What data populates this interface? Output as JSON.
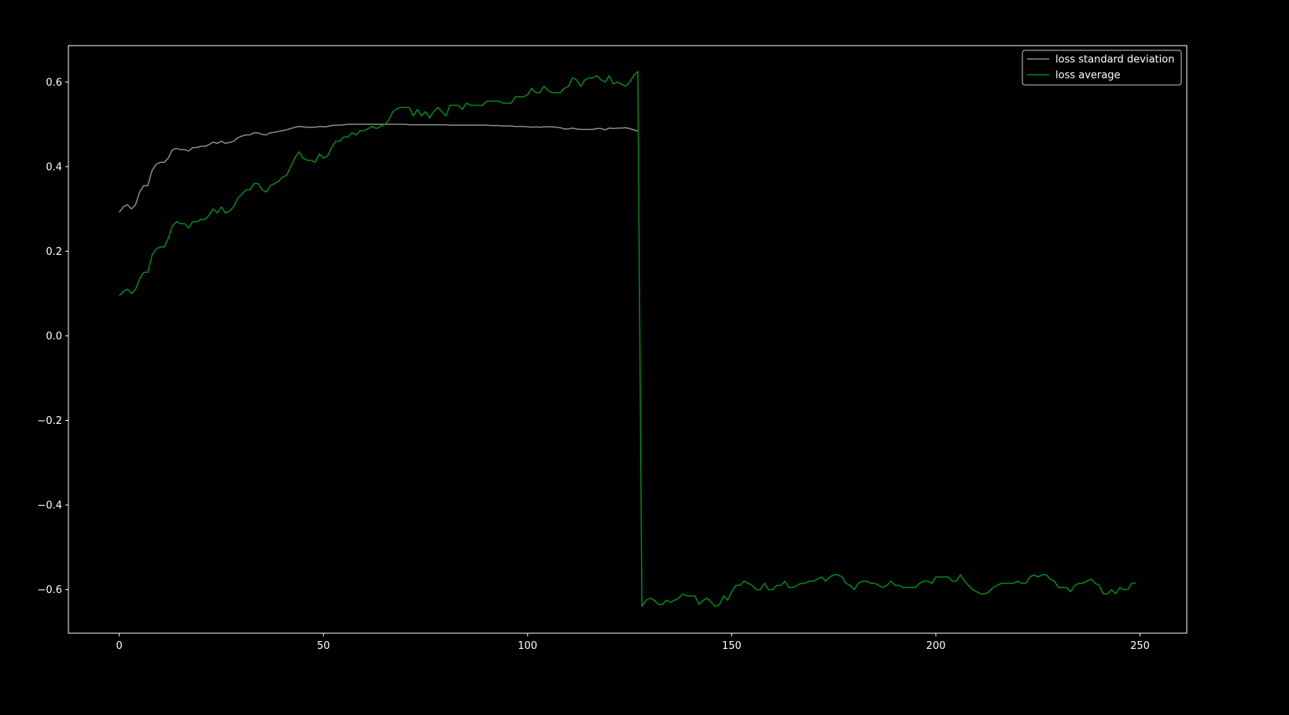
{
  "chart_data": {
    "type": "line",
    "title": "",
    "xlabel": "",
    "ylabel": "",
    "xlim": [
      -12.45,
      261.45
    ],
    "ylim": [
      -0.703,
      0.686
    ],
    "grid": false,
    "legend_position": "top-right",
    "background": "#000000",
    "x_ticks": [
      0,
      50,
      100,
      150,
      200,
      250
    ],
    "x_tick_labels": [
      "0",
      "50",
      "100",
      "150",
      "200",
      "250"
    ],
    "y_ticks": [
      -0.6,
      -0.4,
      -0.2,
      0.0,
      0.2,
      0.4,
      0.6
    ],
    "y_tick_labels": [
      "−0.6",
      "−0.4",
      "−0.2",
      "0.0",
      "0.2",
      "0.4",
      "0.6"
    ],
    "series": [
      {
        "name": "loss standard deviation",
        "color": "#8c8c8c",
        "x_start": 0,
        "values": [
          0.292,
          0.305,
          0.31,
          0.3,
          0.31,
          0.34,
          0.355,
          0.355,
          0.39,
          0.405,
          0.41,
          0.41,
          0.42,
          0.44,
          0.443,
          0.44,
          0.44,
          0.437,
          0.445,
          0.445,
          0.448,
          0.448,
          0.452,
          0.458,
          0.455,
          0.46,
          0.455,
          0.457,
          0.46,
          0.468,
          0.472,
          0.475,
          0.475,
          0.48,
          0.48,
          0.476,
          0.475,
          0.48,
          0.481,
          0.483,
          0.485,
          0.487,
          0.49,
          0.493,
          0.495,
          0.494,
          0.493,
          0.493,
          0.493,
          0.495,
          0.494,
          0.495,
          0.497,
          0.498,
          0.498,
          0.499,
          0.5,
          0.5,
          0.5,
          0.5,
          0.5,
          0.5,
          0.5,
          0.5,
          0.5,
          0.5,
          0.5,
          0.5,
          0.5,
          0.5,
          0.5,
          0.499,
          0.499,
          0.499,
          0.499,
          0.499,
          0.499,
          0.499,
          0.499,
          0.499,
          0.499,
          0.498,
          0.498,
          0.498,
          0.498,
          0.498,
          0.498,
          0.498,
          0.498,
          0.498,
          0.498,
          0.497,
          0.497,
          0.497,
          0.496,
          0.496,
          0.496,
          0.495,
          0.495,
          0.495,
          0.494,
          0.493,
          0.494,
          0.493,
          0.494,
          0.494,
          0.494,
          0.493,
          0.492,
          0.489,
          0.489,
          0.491,
          0.489,
          0.488,
          0.488,
          0.488,
          0.488,
          0.49,
          0.49,
          0.487,
          0.491,
          0.49,
          0.491,
          0.491,
          0.492,
          0.49,
          0.487,
          0.484
        ]
      },
      {
        "name": "loss average",
        "color": "#008a1e",
        "x_start": 0,
        "values": [
          0.095,
          0.105,
          0.11,
          0.1,
          0.11,
          0.135,
          0.15,
          0.15,
          0.19,
          0.205,
          0.21,
          0.21,
          0.23,
          0.26,
          0.27,
          0.265,
          0.265,
          0.255,
          0.27,
          0.27,
          0.275,
          0.275,
          0.285,
          0.3,
          0.29,
          0.305,
          0.29,
          0.295,
          0.305,
          0.325,
          0.335,
          0.345,
          0.345,
          0.36,
          0.36,
          0.345,
          0.34,
          0.355,
          0.36,
          0.365,
          0.375,
          0.38,
          0.4,
          0.42,
          0.435,
          0.42,
          0.415,
          0.415,
          0.41,
          0.43,
          0.42,
          0.425,
          0.445,
          0.46,
          0.46,
          0.47,
          0.47,
          0.48,
          0.475,
          0.485,
          0.485,
          0.49,
          0.495,
          0.49,
          0.495,
          0.5,
          0.51,
          0.53,
          0.537,
          0.54,
          0.54,
          0.54,
          0.52,
          0.535,
          0.52,
          0.53,
          0.515,
          0.53,
          0.54,
          0.53,
          0.52,
          0.545,
          0.545,
          0.545,
          0.535,
          0.55,
          0.545,
          0.545,
          0.545,
          0.545,
          0.555,
          0.555,
          0.555,
          0.555,
          0.55,
          0.55,
          0.55,
          0.565,
          0.565,
          0.565,
          0.57,
          0.585,
          0.575,
          0.575,
          0.59,
          0.58,
          0.575,
          0.575,
          0.575,
          0.585,
          0.59,
          0.61,
          0.605,
          0.59,
          0.605,
          0.61,
          0.61,
          0.615,
          0.605,
          0.6,
          0.615,
          0.595,
          0.6,
          0.595,
          0.59,
          0.6,
          0.615,
          0.625,
          -0.64,
          -0.625,
          -0.62,
          -0.625,
          -0.635,
          -0.635,
          -0.625,
          -0.63,
          -0.625,
          -0.62,
          -0.61,
          -0.615,
          -0.615,
          -0.615,
          -0.635,
          -0.625,
          -0.62,
          -0.63,
          -0.64,
          -0.635,
          -0.615,
          -0.625,
          -0.605,
          -0.59,
          -0.59,
          -0.58,
          -0.585,
          -0.59,
          -0.6,
          -0.6,
          -0.585,
          -0.6,
          -0.6,
          -0.59,
          -0.59,
          -0.58,
          -0.595,
          -0.595,
          -0.59,
          -0.585,
          -0.585,
          -0.58,
          -0.58,
          -0.575,
          -0.57,
          -0.58,
          -0.57,
          -0.565,
          -0.565,
          -0.57,
          -0.585,
          -0.59,
          -0.6,
          -0.585,
          -0.58,
          -0.58,
          -0.585,
          -0.585,
          -0.59,
          -0.595,
          -0.59,
          -0.58,
          -0.59,
          -0.59,
          -0.595,
          -0.595,
          -0.595,
          -0.595,
          -0.585,
          -0.58,
          -0.58,
          -0.585,
          -0.57,
          -0.57,
          -0.57,
          -0.57,
          -0.58,
          -0.58,
          -0.565,
          -0.58,
          -0.59,
          -0.6,
          -0.605,
          -0.61,
          -0.61,
          -0.605,
          -0.595,
          -0.59,
          -0.585,
          -0.585,
          -0.585,
          -0.585,
          -0.58,
          -0.585,
          -0.585,
          -0.57,
          -0.565,
          -0.57,
          -0.565,
          -0.565,
          -0.575,
          -0.58,
          -0.595,
          -0.595,
          -0.595,
          -0.605,
          -0.59,
          -0.585,
          -0.585,
          -0.58,
          -0.575,
          -0.585,
          -0.59,
          -0.61,
          -0.61,
          -0.6,
          -0.61,
          -0.595,
          -0.6,
          -0.6,
          -0.585,
          -0.585
        ]
      }
    ]
  }
}
